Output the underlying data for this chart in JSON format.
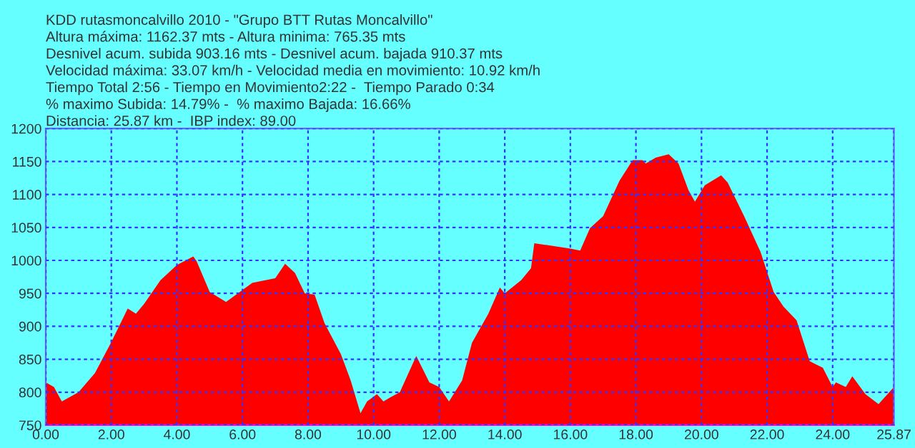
{
  "chart_data": {
    "type": "area",
    "title": "KDD rutasmoncalvillo 2010 - \"Grupo BTT Rutas Moncalvillo\"",
    "annotations": [
      "Altura máxima: 1162.37 mts - Altura minima: 765.35 mts",
      "Desnivel acum. subida 903.16 mts - Desnivel acum. bajada 910.37 mts",
      "Velocidad máxima: 33.07 km/h - Velocidad media en movimiento: 10.92 km/h",
      "Tiempo Total 2:56 - Tiempo en Movimiento2:22 -  Tiempo Parado 0:34",
      "% maximo Subida: 14.79% -  % maximo Bajada: 16.66%",
      "Distancia: 25.87 km -  IBP index: 89.00"
    ],
    "x": [
      0,
      0.25,
      0.49,
      1.0,
      1.5,
      2.0,
      2.5,
      2.75,
      3.0,
      3.5,
      4.0,
      4.5,
      4.6,
      5.0,
      5.5,
      6.0,
      6.3,
      7.0,
      7.3,
      7.6,
      7.9,
      8.2,
      8.5,
      9.0,
      9.3,
      9.6,
      9.8,
      10.1,
      10.3,
      10.5,
      10.8,
      11.3,
      11.7,
      12.0,
      12.3,
      12.7,
      13.0,
      13.5,
      13.85,
      14.0,
      14.5,
      14.8,
      14.9,
      16.0,
      16.3,
      16.6,
      17.0,
      17.5,
      17.9,
      18.2,
      18.3,
      18.6,
      19.0,
      19.3,
      19.6,
      19.8,
      20.1,
      20.6,
      20.8,
      21.3,
      21.8,
      22.2,
      22.5,
      22.9,
      23.3,
      23.7,
      24.0,
      24.1,
      24.4,
      24.6,
      25.0,
      25.4,
      25.87
    ],
    "series": [
      {
        "color": "#ff0000",
        "values": [
          815,
          808,
          786,
          800,
          829,
          876,
          927,
          919,
          934,
          970,
          993,
          1006,
          999,
          952,
          937,
          955,
          966,
          973,
          995,
          981,
          950,
          948,
          905,
          858,
          818,
          768,
          786,
          797,
          786,
          792,
          800,
          855,
          815,
          808,
          786,
          818,
          875,
          919,
          959,
          950,
          970,
          988,
          1026,
          1018,
          1015,
          1049,
          1067,
          1121,
          1152,
          1152,
          1147,
          1156,
          1161,
          1147,
          1107,
          1089,
          1114,
          1129,
          1118,
          1067,
          1013,
          952,
          930,
          909,
          847,
          837,
          808,
          815,
          808,
          824,
          797,
          782,
          808
        ]
      }
    ],
    "xlim": [
      0,
      25.87
    ],
    "ylim": [
      750,
      1200
    ],
    "xticks": [
      {
        "value": 0,
        "label": "0.00"
      },
      {
        "value": 2,
        "label": "2.00"
      },
      {
        "value": 4,
        "label": "4.00"
      },
      {
        "value": 6,
        "label": "6.00"
      },
      {
        "value": 8,
        "label": "8.00"
      },
      {
        "value": 10,
        "label": "10.00"
      },
      {
        "value": 12,
        "label": "12.00"
      },
      {
        "value": 14,
        "label": "14.00"
      },
      {
        "value": 16,
        "label": "16.00"
      },
      {
        "value": 18,
        "label": "18.00"
      },
      {
        "value": 20,
        "label": "20.00"
      },
      {
        "value": 22,
        "label": "22.00"
      },
      {
        "value": 24,
        "label": "24.00"
      },
      {
        "value": 25.87,
        "label": "25.87"
      }
    ],
    "yticks": [
      750,
      800,
      850,
      900,
      950,
      1000,
      1050,
      1100,
      1150,
      1200
    ],
    "grid": true,
    "line_style": "dashed"
  }
}
